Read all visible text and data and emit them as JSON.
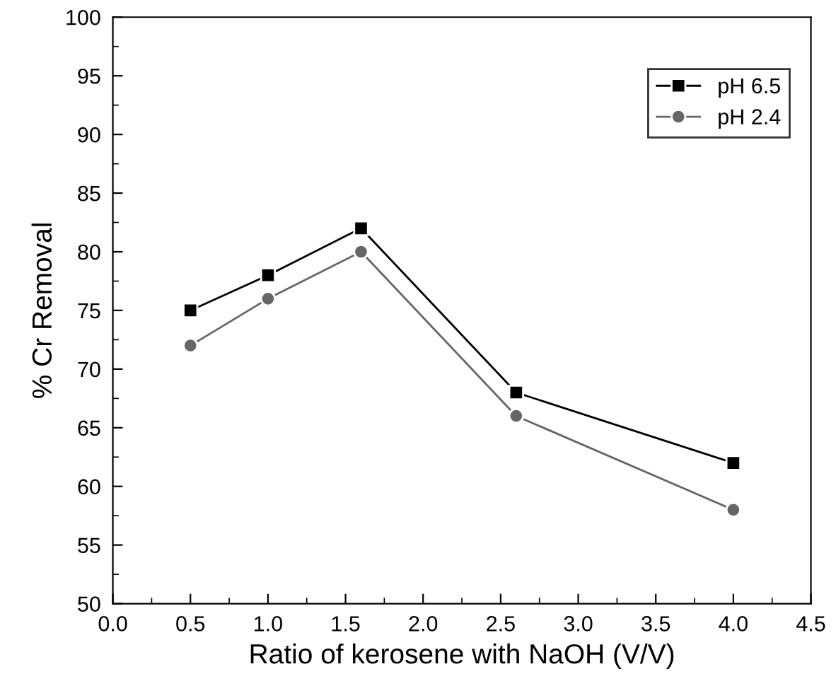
{
  "chart_data": {
    "type": "line",
    "xlabel": "Ratio of kerosene with NaOH (V/V)",
    "ylabel": "% Cr Removal",
    "x": [
      0.5,
      1.0,
      1.6,
      2.6,
      4.0
    ],
    "series": [
      {
        "name": "pH 6.5",
        "color": "#000000",
        "marker": "square",
        "values": [
          75,
          78,
          82,
          68,
          62
        ]
      },
      {
        "name": "pH 2.4",
        "color": "#666666",
        "marker": "circle",
        "values": [
          72,
          76,
          80,
          66,
          58
        ]
      }
    ],
    "xlim": [
      0.0,
      4.5
    ],
    "xticks": [
      {
        "value": 0,
        "label": "0.0"
      },
      0.5,
      {
        "value": 1,
        "label": "1.0"
      },
      1.5,
      {
        "value": 2,
        "label": "2.0"
      },
      2.5,
      {
        "value": 3,
        "label": "3.0"
      },
      3.5,
      {
        "value": 4,
        "label": "4.0"
      },
      4.5
    ],
    "ylim": [
      50,
      100
    ],
    "yticks": [
      50,
      55,
      60,
      65,
      70,
      75,
      80,
      85,
      90,
      95,
      100
    ],
    "grid": false,
    "legend": "top right",
    "line_style": "solid"
  }
}
